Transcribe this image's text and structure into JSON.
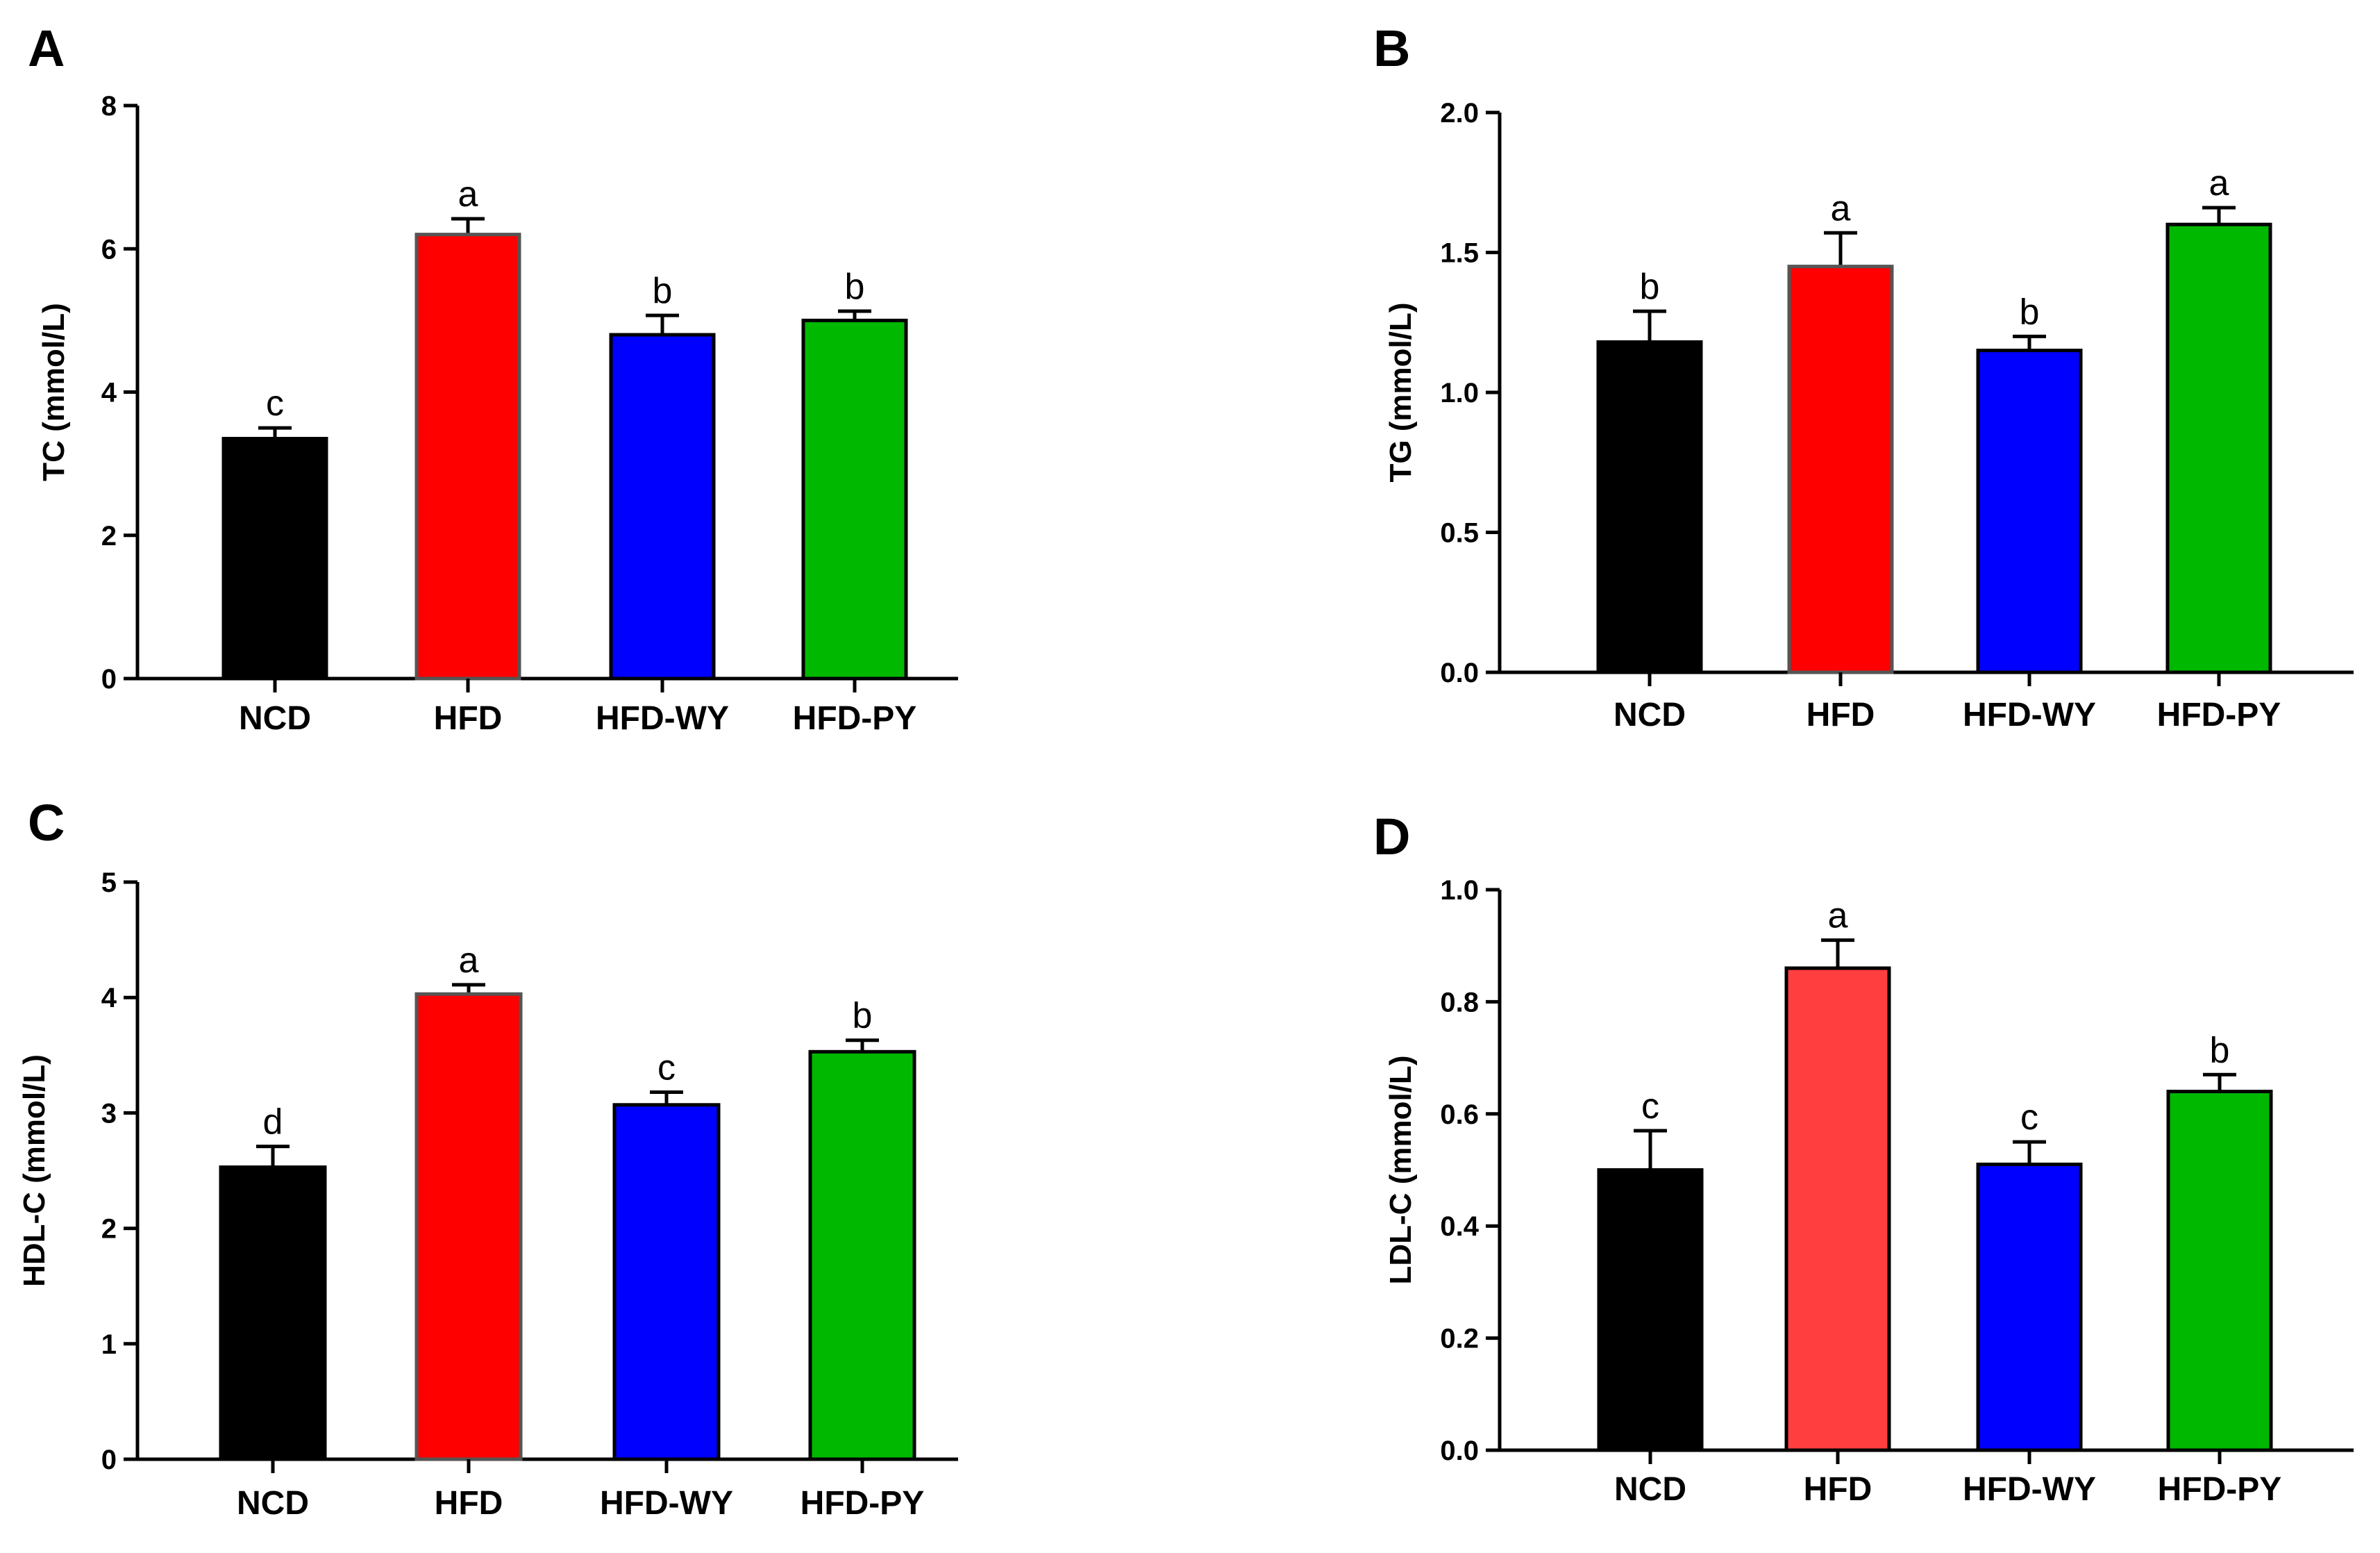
{
  "colors": {
    "NCD": "#000000",
    "HFD": "#ff0000",
    "HFD_light": "#ff3f3f",
    "HFD-WY": "#0000ff",
    "HFD-PY": "#00b800",
    "edge": "#000000",
    "hfd_edge": "#555555"
  },
  "chart_data": [
    {
      "panel": "A",
      "type": "bar",
      "title": "",
      "xlabel": "",
      "ylabel": "TC (mmol/L)",
      "categories": [
        "NCD",
        "HFD",
        "HFD-WY",
        "HFD-PY"
      ],
      "values": [
        3.35,
        6.2,
        4.8,
        5.0
      ],
      "errors": [
        0.15,
        0.22,
        0.27,
        0.13
      ],
      "significance": [
        "c",
        "a",
        "b",
        "b"
      ],
      "ylim": [
        0,
        8
      ],
      "yticks": [
        0,
        2,
        4,
        6,
        8
      ],
      "ytick_labels": [
        "0",
        "2",
        "4",
        "6",
        "8"
      ]
    },
    {
      "panel": "B",
      "type": "bar",
      "title": "",
      "xlabel": "",
      "ylabel": "TG (mmol/L)",
      "categories": [
        "NCD",
        "HFD",
        "HFD-WY",
        "HFD-PY"
      ],
      "values": [
        1.18,
        1.45,
        1.15,
        1.6
      ],
      "errors": [
        0.11,
        0.12,
        0.05,
        0.06
      ],
      "significance": [
        "b",
        "a",
        "b",
        "a"
      ],
      "ylim": [
        0,
        2
      ],
      "yticks": [
        0,
        0.5,
        1,
        1.5,
        2
      ],
      "ytick_labels": [
        "0.0",
        "0.5",
        "1.0",
        "1.5",
        "2.0"
      ]
    },
    {
      "panel": "C",
      "type": "bar",
      "title": "",
      "xlabel": "",
      "ylabel": "HDL-C (mmol/L)",
      "categories": [
        "NCD",
        "HFD",
        "HFD-WY",
        "HFD-PY"
      ],
      "values": [
        2.53,
        4.03,
        3.07,
        3.53
      ],
      "errors": [
        0.18,
        0.08,
        0.11,
        0.1
      ],
      "significance": [
        "d",
        "a",
        "c",
        "b"
      ],
      "ylim": [
        0,
        5
      ],
      "yticks": [
        0,
        1,
        2,
        3,
        4,
        5
      ],
      "ytick_labels": [
        "0",
        "1",
        "2",
        "3",
        "4",
        "5"
      ]
    },
    {
      "panel": "D",
      "type": "bar",
      "title": "",
      "xlabel": "",
      "ylabel": "LDL-C (mmol/L)",
      "categories": [
        "NCD",
        "HFD",
        "HFD-WY",
        "HFD-PY"
      ],
      "values": [
        0.5,
        0.86,
        0.51,
        0.64
      ],
      "errors": [
        0.07,
        0.05,
        0.04,
        0.03
      ],
      "significance": [
        "c",
        "a",
        "c",
        "b"
      ],
      "ylim": [
        0,
        1
      ],
      "yticks": [
        0,
        0.2,
        0.4,
        0.6,
        0.8,
        1
      ],
      "ytick_labels": [
        "0.0",
        "0.2",
        "0.4",
        "0.6",
        "0.8",
        "1.0"
      ]
    }
  ]
}
